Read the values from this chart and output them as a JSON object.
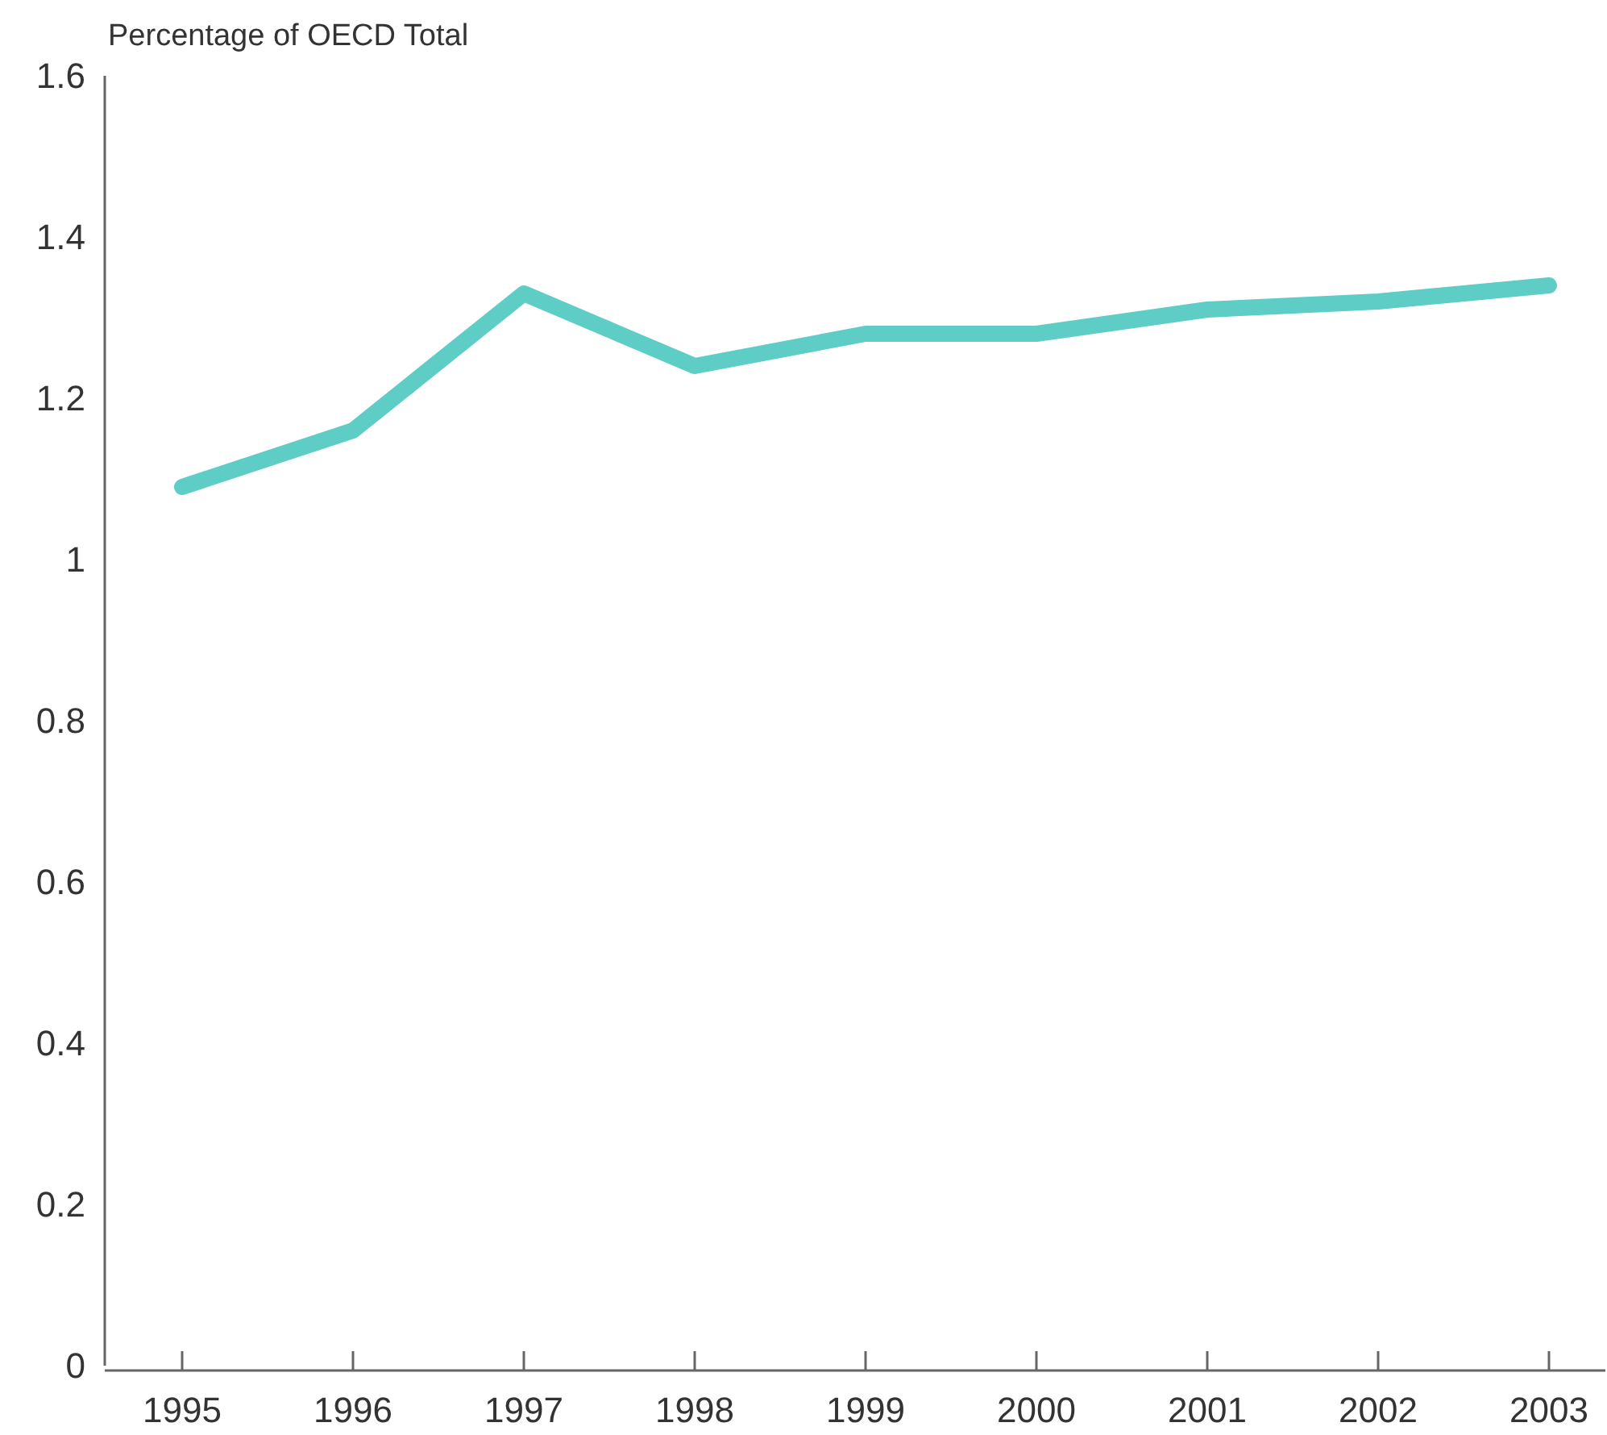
{
  "chart_data": {
    "type": "line",
    "ylabel": "Percentage of OECD Total",
    "categories": [
      "1995",
      "1996",
      "1997",
      "1998",
      "1999",
      "2000",
      "2001",
      "2002",
      "2003"
    ],
    "series": [
      {
        "color": "#5ecdc6",
        "values": [
          1.09,
          1.16,
          1.33,
          1.24,
          1.28,
          1.28,
          1.31,
          1.32,
          1.34
        ]
      }
    ],
    "ylim": [
      0,
      1.6
    ],
    "yticks": [
      0,
      0.2,
      0.4,
      0.6,
      0.8,
      1,
      1.2,
      1.4,
      1.6
    ],
    "marker": "none",
    "line_style": "solid"
  }
}
